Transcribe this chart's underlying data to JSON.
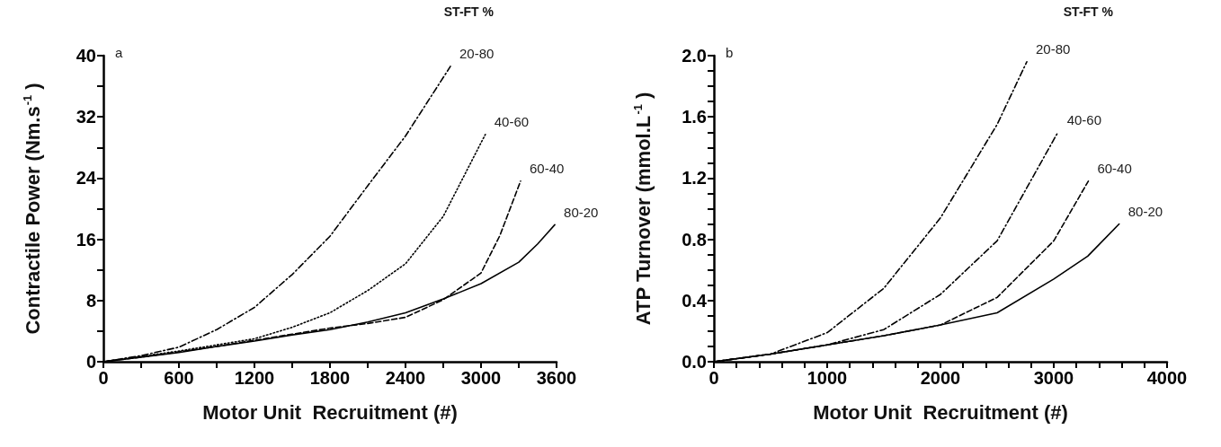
{
  "chart_data": [
    {
      "type": "line",
      "title": "a",
      "xlabel": "Motor Unit  Recruitment (#)",
      "ylabel": "Contractile Power (Nm.s$^{-1}$)",
      "annotations": [
        "ST-FT %"
      ],
      "xlim": [
        0,
        3600
      ],
      "ylim": [
        0,
        40
      ],
      "xticks": [
        0,
        {
          "value": 300,
          "label": null
        },
        600,
        {
          "value": 900,
          "label": null
        },
        1200,
        {
          "value": 1500,
          "label": null
        },
        1800,
        {
          "value": 2100,
          "label": null
        },
        2400,
        {
          "value": 2700,
          "label": null
        },
        3000,
        {
          "value": 3300,
          "label": null
        },
        3600
      ],
      "yticks": [
        0,
        {
          "value": 4,
          "label": null
        },
        8,
        {
          "value": 12,
          "label": null
        },
        16,
        {
          "value": 20,
          "label": null
        },
        24,
        {
          "value": 28,
          "label": null
        },
        32,
        {
          "value": 36,
          "label": null
        },
        40
      ],
      "grid": false,
      "legend": false,
      "marker": "none",
      "series": [
        {
          "name": "20-80",
          "color": "#000000",
          "line_style": "dashdot",
          "x": [
            0,
            300,
            600,
            900,
            1200,
            1500,
            1800,
            2100,
            2400,
            2757
          ],
          "values": [
            0,
            0.8,
            1.9,
            4.2,
            7.1,
            11.4,
            16.4,
            23,
            29.5,
            38.6
          ]
        },
        {
          "name": "40-60",
          "color": "#000000",
          "line_style": "dotted",
          "x": [
            0,
            300,
            600,
            900,
            1200,
            1500,
            1800,
            2100,
            2400,
            2700,
            3034
          ],
          "values": [
            0,
            0.7,
            1.4,
            2.2,
            3.0,
            4.5,
            6.4,
            9.3,
            12.8,
            19,
            29.7
          ]
        },
        {
          "name": "60-40",
          "color": "#000000",
          "line_style": "dashed",
          "x": [
            0,
            300,
            600,
            900,
            1200,
            1500,
            1800,
            2100,
            2400,
            2700,
            3000,
            3150,
            3314
          ],
          "values": [
            0,
            0.6,
            1.3,
            2.0,
            2.8,
            3.6,
            4.4,
            5.0,
            5.8,
            8.1,
            11.6,
            16.5,
            23.6
          ]
        },
        {
          "name": "80-20",
          "color": "#000000",
          "line_style": "solid",
          "x": [
            0,
            300,
            600,
            900,
            1200,
            1500,
            1800,
            2100,
            2400,
            2700,
            3000,
            3300,
            3450,
            3586
          ],
          "values": [
            0,
            0.6,
            1.2,
            2.0,
            2.7,
            3.5,
            4.2,
            5.2,
            6.4,
            8.2,
            10.2,
            13,
            15.4,
            17.9
          ]
        }
      ]
    },
    {
      "type": "line",
      "title": "b",
      "xlabel": "Motor Unit  Recruitment (#)",
      "ylabel": "ATP Turnover (mmol.L$^{-1}$)",
      "annotations": [
        "ST-FT %"
      ],
      "xlim": [
        0,
        4000
      ],
      "ylim": [
        0,
        2.0
      ],
      "xticks": [
        0,
        {
          "value": 200,
          "label": null
        },
        {
          "value": 400,
          "label": null
        },
        {
          "value": 600,
          "label": null
        },
        {
          "value": 800,
          "label": null
        },
        1000,
        {
          "value": 1200,
          "label": null
        },
        {
          "value": 1400,
          "label": null
        },
        {
          "value": 1600,
          "label": null
        },
        {
          "value": 1800,
          "label": null
        },
        2000,
        {
          "value": 2200,
          "label": null
        },
        {
          "value": 2400,
          "label": null
        },
        {
          "value": 2600,
          "label": null
        },
        {
          "value": 2800,
          "label": null
        },
        3000,
        {
          "value": 3200,
          "label": null
        },
        {
          "value": 3400,
          "label": null
        },
        {
          "value": 3600,
          "label": null
        },
        {
          "value": 3800,
          "label": null
        },
        4000
      ],
      "yticks": [
        {
          "value": 0,
          "label": "0.0"
        },
        {
          "value": 0.1,
          "label": null
        },
        {
          "value": 0.2,
          "label": null
        },
        {
          "value": 0.3,
          "label": null
        },
        0.4,
        {
          "value": 0.5,
          "label": null
        },
        {
          "value": 0.6,
          "label": null
        },
        {
          "value": 0.7,
          "label": null
        },
        0.8,
        {
          "value": 0.9,
          "label": null
        },
        {
          "value": 1.0,
          "label": null
        },
        {
          "value": 1.1,
          "label": null
        },
        1.2,
        {
          "value": 1.3,
          "label": null
        },
        {
          "value": 1.4,
          "label": null
        },
        {
          "value": 1.5,
          "label": null
        },
        1.6,
        {
          "value": 1.7,
          "label": null
        },
        {
          "value": 1.8,
          "label": null
        },
        {
          "value": 1.9,
          "label": null
        },
        {
          "value": 2.0,
          "label": "2.0"
        }
      ],
      "grid": false,
      "legend": false,
      "marker": "none",
      "series": [
        {
          "name": "20-80",
          "color": "#000000",
          "line_style": "dashdot",
          "x": [
            0,
            500,
            1000,
            1500,
            2000,
            2500,
            2762
          ],
          "values": [
            0,
            0.05,
            0.19,
            0.48,
            0.94,
            1.55,
            1.96
          ]
        },
        {
          "name": "40-60",
          "color": "#000000",
          "line_style": "dashdot",
          "x": [
            0,
            500,
            1000,
            1500,
            2000,
            2500,
            3037
          ],
          "values": [
            0,
            0.05,
            0.11,
            0.21,
            0.44,
            0.79,
            1.5
          ]
        },
        {
          "name": "60-40",
          "color": "#000000",
          "line_style": "dashed",
          "x": [
            0,
            500,
            1000,
            1500,
            2000,
            2500,
            3000,
            3305
          ],
          "values": [
            0,
            0.05,
            0.11,
            0.17,
            0.24,
            0.42,
            0.79,
            1.18
          ]
        },
        {
          "name": "80-20",
          "color": "#000000",
          "line_style": "solid",
          "x": [
            0,
            500,
            1000,
            1500,
            2000,
            2500,
            3000,
            3300,
            3577
          ],
          "values": [
            0,
            0.05,
            0.11,
            0.17,
            0.24,
            0.32,
            0.54,
            0.69,
            0.9
          ]
        }
      ]
    }
  ]
}
